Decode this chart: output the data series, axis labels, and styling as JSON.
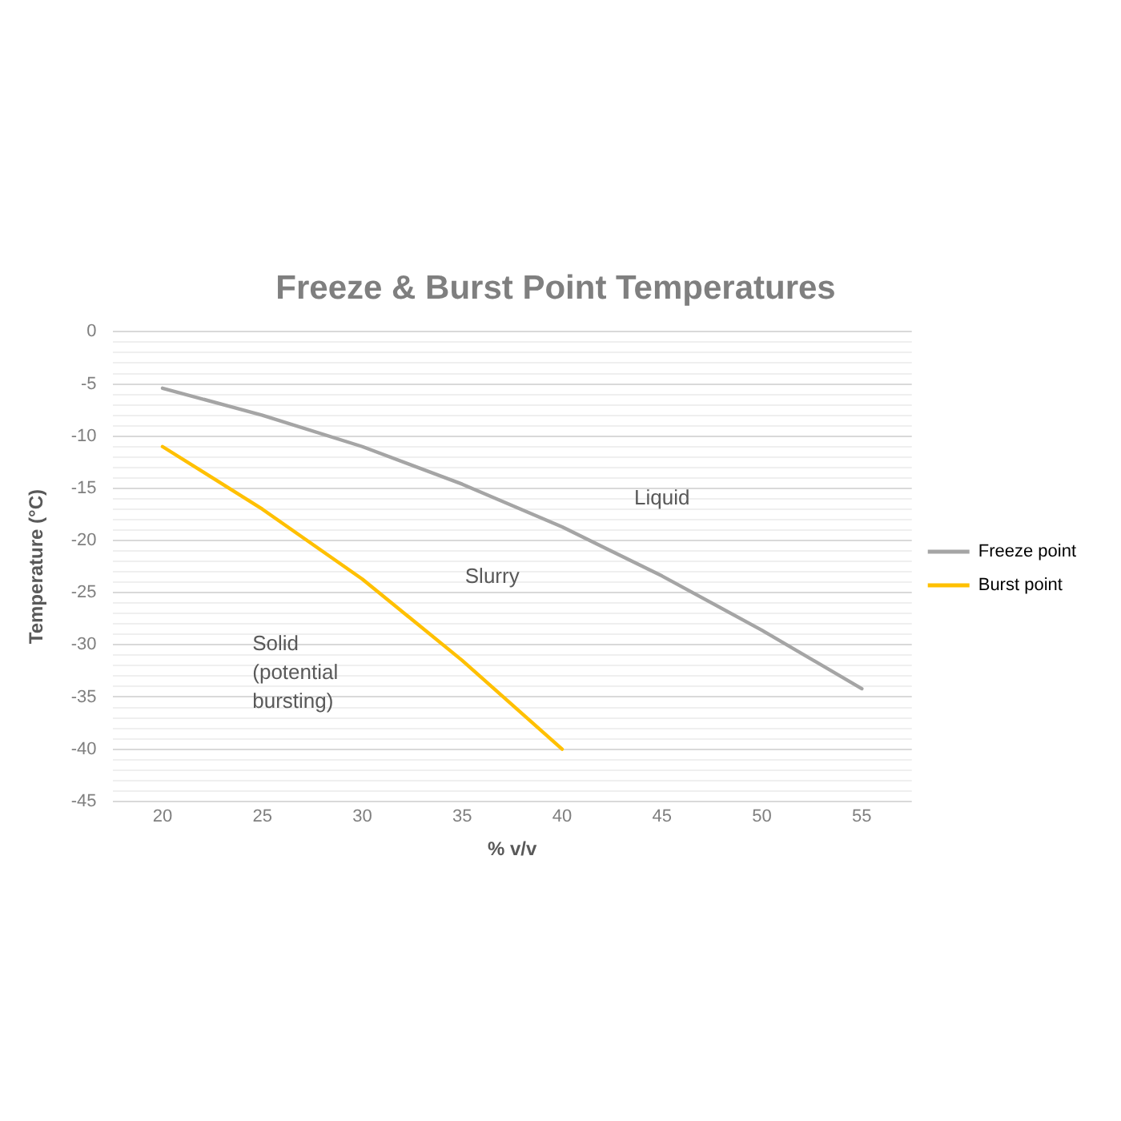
{
  "chart_data": {
    "type": "line",
    "title": "Freeze & Burst Point Temperatures",
    "xlabel": "% v/v",
    "ylabel": "Temperature (°C)",
    "categories": [
      "20",
      "25",
      "30",
      "35",
      "40",
      "45",
      "50",
      "55"
    ],
    "series": [
      {
        "name": "Freeze point",
        "color": "#a5a5a5",
        "values": [
          -5.4,
          -8,
          -11,
          -14.6,
          -18.7,
          -23.4,
          -28.6,
          -34.2
        ]
      },
      {
        "name": "Burst point",
        "color": "#ffc000",
        "values": [
          -11,
          -17,
          -23.7,
          -31.5,
          -40,
          null,
          null,
          null
        ]
      }
    ],
    "ylim": [
      -45,
      0
    ],
    "yticks": [
      0,
      {
        "value": -1,
        "label": null
      },
      {
        "value": -2,
        "label": null
      },
      {
        "value": -3,
        "label": null
      },
      {
        "value": -4,
        "label": null
      },
      -5,
      {
        "value": -6,
        "label": null
      },
      {
        "value": -7,
        "label": null
      },
      {
        "value": -8,
        "label": null
      },
      {
        "value": -9,
        "label": null
      },
      -10,
      {
        "value": -11,
        "label": null
      },
      {
        "value": -12,
        "label": null
      },
      {
        "value": -13,
        "label": null
      },
      {
        "value": -14,
        "label": null
      },
      -15,
      {
        "value": -16,
        "label": null
      },
      {
        "value": -17,
        "label": null
      },
      {
        "value": -18,
        "label": null
      },
      {
        "value": -19,
        "label": null
      },
      -20,
      {
        "value": -21,
        "label": null
      },
      {
        "value": -22,
        "label": null
      },
      {
        "value": -23,
        "label": null
      },
      {
        "value": -24,
        "label": null
      },
      -25,
      {
        "value": -26,
        "label": null
      },
      {
        "value": -27,
        "label": null
      },
      {
        "value": -28,
        "label": null
      },
      {
        "value": -29,
        "label": null
      },
      -30,
      {
        "value": -31,
        "label": null
      },
      {
        "value": -32,
        "label": null
      },
      {
        "value": -33,
        "label": null
      },
      {
        "value": -34,
        "label": null
      },
      -35,
      {
        "value": -36,
        "label": null
      },
      {
        "value": -37,
        "label": null
      },
      {
        "value": -38,
        "label": null
      },
      {
        "value": -39,
        "label": null
      },
      -40,
      {
        "value": -41,
        "label": null
      },
      {
        "value": -42,
        "label": null
      },
      {
        "value": -43,
        "label": null
      },
      {
        "value": -44,
        "label": null
      },
      -45
    ],
    "annotations": [
      "Liquid",
      "Slurry",
      "Solid (potential bursting)"
    ],
    "grid": "y",
    "legend": "right",
    "marker": "none",
    "line_style": "solid"
  }
}
